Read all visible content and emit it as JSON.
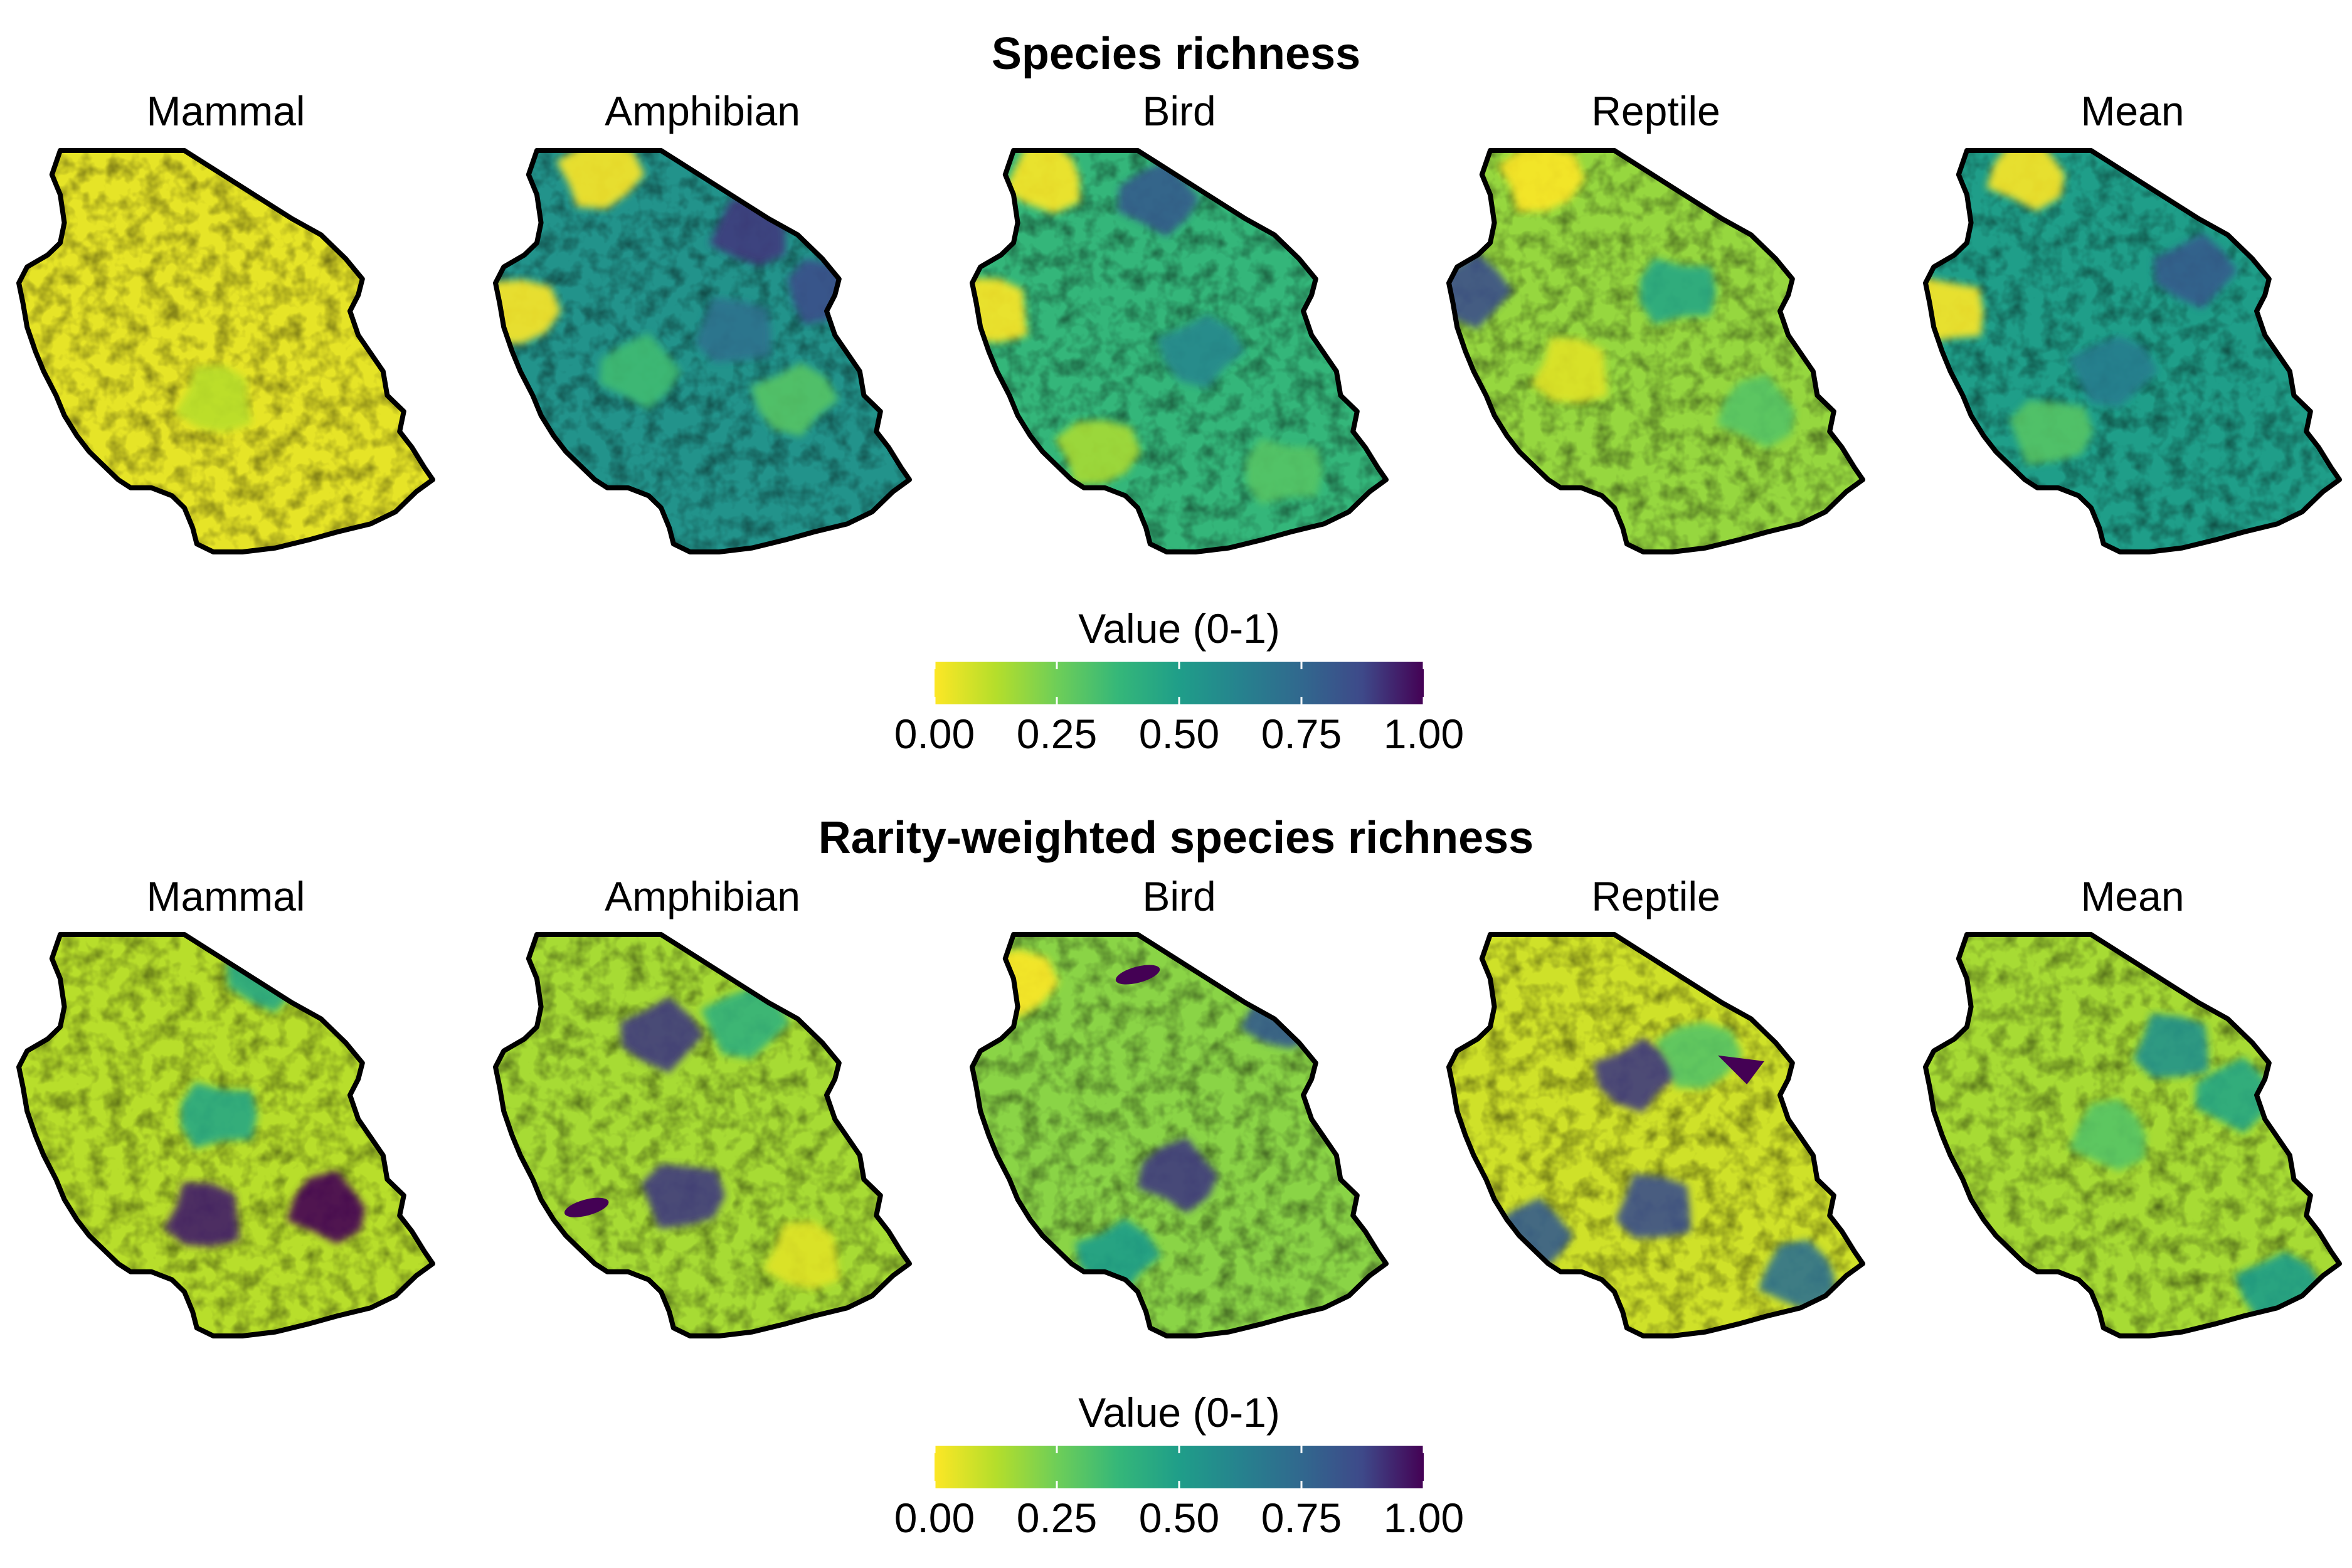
{
  "sections": [
    {
      "title": "Species richness",
      "panels": [
        {
          "title": "Mammal",
          "mean_value": 0.04,
          "features": [
            {
              "shape": "patch",
              "u": 0.48,
              "v": 0.62,
              "value": 0.12
            }
          ]
        },
        {
          "title": "Amphibian",
          "mean_value": 0.55,
          "features": [
            {
              "shape": "patch",
              "u": 0.25,
              "v": 0.06,
              "value": 0.0
            },
            {
              "shape": "patch",
              "u": 0.8,
              "v": 0.35,
              "value": 0.85
            },
            {
              "shape": "patch",
              "u": 0.58,
              "v": 0.45,
              "value": 0.7
            },
            {
              "shape": "patch",
              "u": 0.62,
              "v": 0.2,
              "value": 0.9
            },
            {
              "shape": "patch",
              "u": 0.35,
              "v": 0.55,
              "value": 0.35
            },
            {
              "shape": "patch",
              "u": 0.72,
              "v": 0.62,
              "value": 0.3
            },
            {
              "shape": "patch",
              "u": 0.05,
              "v": 0.4,
              "value": 0.0
            }
          ]
        },
        {
          "title": "Bird",
          "mean_value": 0.38,
          "features": [
            {
              "shape": "patch",
              "u": 0.18,
              "v": 0.07,
              "value": 0.0
            },
            {
              "shape": "patch",
              "u": 0.45,
              "v": 0.12,
              "value": 0.8
            },
            {
              "shape": "patch",
              "u": 0.55,
              "v": 0.5,
              "value": 0.6
            },
            {
              "shape": "patch",
              "u": 0.3,
              "v": 0.75,
              "value": 0.15
            },
            {
              "shape": "patch",
              "u": 0.75,
              "v": 0.8,
              "value": 0.3
            },
            {
              "shape": "patch",
              "u": 0.05,
              "v": 0.4,
              "value": 0.0
            }
          ]
        },
        {
          "title": "Reptile",
          "mean_value": 0.18,
          "features": [
            {
              "shape": "patch",
              "u": 0.22,
              "v": 0.07,
              "value": 0.0
            },
            {
              "shape": "patch",
              "u": 0.55,
              "v": 0.35,
              "value": 0.45
            },
            {
              "shape": "patch",
              "u": 0.3,
              "v": 0.55,
              "value": 0.05
            },
            {
              "shape": "patch",
              "u": 0.75,
              "v": 0.65,
              "value": 0.3
            },
            {
              "shape": "patch",
              "u": 0.05,
              "v": 0.35,
              "value": 0.85
            }
          ]
        },
        {
          "title": "Mean",
          "mean_value": 0.5,
          "features": [
            {
              "shape": "patch",
              "u": 0.25,
              "v": 0.06,
              "value": 0.0
            },
            {
              "shape": "patch",
              "u": 0.65,
              "v": 0.3,
              "value": 0.8
            },
            {
              "shape": "patch",
              "u": 0.45,
              "v": 0.55,
              "value": 0.65
            },
            {
              "shape": "patch",
              "u": 0.3,
              "v": 0.7,
              "value": 0.3
            },
            {
              "shape": "patch",
              "u": 0.05,
              "v": 0.4,
              "value": 0.0
            }
          ]
        }
      ],
      "legend": {
        "title": "Value (0-1)",
        "ticks": [
          "0.00",
          "0.25",
          "0.50",
          "0.75",
          "1.00"
        ]
      }
    },
    {
      "title": "Rarity-weighted species richness",
      "panels": [
        {
          "title": "Mammal",
          "mean_value": 0.12,
          "features": [
            {
              "shape": "patch",
              "u": 0.48,
              "v": 0.45,
              "value": 0.45
            },
            {
              "shape": "patch",
              "u": 0.45,
              "v": 0.7,
              "value": 0.95
            },
            {
              "shape": "patch",
              "u": 0.75,
              "v": 0.68,
              "value": 1.0
            },
            {
              "shape": "patch",
              "u": 0.6,
              "v": 0.1,
              "value": 0.45
            }
          ]
        },
        {
          "title": "Amphibian",
          "mean_value": 0.15,
          "features": [
            {
              "shape": "patch",
              "u": 0.4,
              "v": 0.25,
              "value": 0.9
            },
            {
              "shape": "patch",
              "u": 0.6,
              "v": 0.22,
              "value": 0.4
            },
            {
              "shape": "patch",
              "u": 0.45,
              "v": 0.65,
              "value": 0.9
            },
            {
              "shape": "ellipse",
              "u": 0.22,
              "v": 0.68,
              "value": 1.0
            },
            {
              "shape": "patch",
              "u": 0.75,
              "v": 0.8,
              "value": 0.05
            }
          ]
        },
        {
          "title": "Bird",
          "mean_value": 0.2,
          "features": [
            {
              "shape": "ellipse",
              "u": 0.4,
              "v": 0.1,
              "value": 1.0
            },
            {
              "shape": "patch",
              "u": 0.75,
              "v": 0.2,
              "value": 0.8
            },
            {
              "shape": "patch",
              "u": 0.5,
              "v": 0.6,
              "value": 0.9
            },
            {
              "shape": "patch",
              "u": 0.35,
              "v": 0.8,
              "value": 0.5
            },
            {
              "shape": "patch",
              "u": 0.1,
              "v": 0.12,
              "value": 0.0
            }
          ]
        },
        {
          "title": "Reptile",
          "mean_value": 0.08,
          "features": [
            {
              "shape": "patch",
              "u": 0.45,
              "v": 0.35,
              "value": 0.9
            },
            {
              "shape": "patch",
              "u": 0.6,
              "v": 0.3,
              "value": 0.3
            },
            {
              "shape": "triangle",
              "u": 0.72,
              "v": 0.33,
              "value": 1.0
            },
            {
              "shape": "patch",
              "u": 0.5,
              "v": 0.68,
              "value": 0.85
            },
            {
              "shape": "patch",
              "u": 0.85,
              "v": 0.85,
              "value": 0.7
            },
            {
              "shape": "patch",
              "u": 0.2,
              "v": 0.75,
              "value": 0.8
            }
          ]
        },
        {
          "title": "Mean",
          "mean_value": 0.15,
          "features": [
            {
              "shape": "patch",
              "u": 0.6,
              "v": 0.28,
              "value": 0.55
            },
            {
              "shape": "patch",
              "u": 0.45,
              "v": 0.5,
              "value": 0.3
            },
            {
              "shape": "patch",
              "u": 0.75,
              "v": 0.4,
              "value": 0.45
            },
            {
              "shape": "patch",
              "u": 0.85,
              "v": 0.88,
              "value": 0.5
            }
          ]
        }
      ],
      "legend": {
        "title": "Value (0-1)",
        "ticks": [
          "0.00",
          "0.25",
          "0.50",
          "0.75",
          "1.00"
        ]
      }
    }
  ],
  "colors": {
    "colormap": "viridis-reversed",
    "scale_low": "#fde725",
    "scale_mid": "#21918c",
    "scale_high": "#440154",
    "outline": "#000000"
  }
}
